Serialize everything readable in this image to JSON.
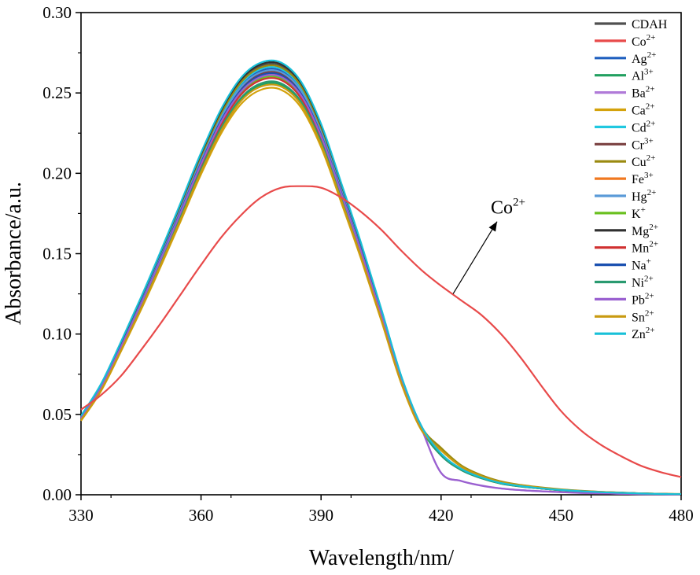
{
  "chart_data": {
    "type": "line",
    "title": "",
    "xlabel": "Wavelength/nm/",
    "ylabel": "Absorbance/a.u.",
    "xlim": [
      330,
      480
    ],
    "ylim": [
      0,
      0.3
    ],
    "xticks": [
      "330",
      "360",
      "390",
      "420",
      "450",
      "480"
    ],
    "yticks": [
      "0.00",
      "0.05",
      "0.10",
      "0.15",
      "0.20",
      "0.25",
      "0.30"
    ],
    "grid": false,
    "legend_position": "top-right",
    "x": [
      330,
      335,
      340,
      345,
      350,
      355,
      360,
      365,
      370,
      375,
      380,
      385,
      390,
      395,
      400,
      405,
      410,
      415,
      420,
      425,
      430,
      435,
      440,
      445,
      450,
      455,
      460,
      465,
      470,
      475,
      480
    ],
    "series": [
      {
        "name": "CDAH",
        "base": "CDAH",
        "sup": "",
        "color": "#505050",
        "peak": 0.268,
        "tail": 0.0015
      },
      {
        "name": "Co2+",
        "base": "Co",
        "sup": "2+",
        "color": "#e84a4a",
        "values": [
          0.053,
          0.062,
          0.074,
          0.09,
          0.107,
          0.125,
          0.143,
          0.16,
          0.174,
          0.185,
          0.191,
          0.192,
          0.191,
          0.185,
          0.176,
          0.165,
          0.152,
          0.14,
          0.13,
          0.121,
          0.112,
          0.1,
          0.085,
          0.068,
          0.052,
          0.04,
          0.031,
          0.024,
          0.018,
          0.014,
          0.011
        ]
      },
      {
        "name": "Ag2+",
        "base": "Ag",
        "sup": "2+",
        "color": "#1f5fbf",
        "peak": 0.265,
        "tail": 0.0015
      },
      {
        "name": "Al3+",
        "base": "Al",
        "sup": "3+",
        "color": "#22a060",
        "peak": 0.256,
        "tail": 0.0018
      },
      {
        "name": "Ba2+",
        "base": "Ba",
        "sup": "2+",
        "color": "#b07ad8",
        "peak": 0.262,
        "tail": 0.0005
      },
      {
        "name": "Ca2+",
        "base": "Ca",
        "sup": "2+",
        "color": "#d4a20c",
        "peak": 0.253,
        "tail": 0.0018
      },
      {
        "name": "Cd2+",
        "base": "Cd",
        "sup": "2+",
        "color": "#20c8e0",
        "peak": 0.266,
        "tail": 0.0015
      },
      {
        "name": "Cr3+",
        "base": "Cr",
        "sup": "3+",
        "color": "#7a4040",
        "peak": 0.263,
        "tail": 0.0015
      },
      {
        "name": "Cu2+",
        "base": "Cu",
        "sup": "2+",
        "color": "#9a8a10",
        "peak": 0.267,
        "tail": 0.002
      },
      {
        "name": "Fe3+",
        "base": "Fe",
        "sup": "3+",
        "color": "#f07820",
        "peak": 0.261,
        "tail": 0.0015
      },
      {
        "name": "Hg2+",
        "base": "Hg",
        "sup": "2+",
        "color": "#5a9ad8",
        "peak": 0.264,
        "tail": 0.0015
      },
      {
        "name": "K+",
        "base": "K",
        "sup": "+",
        "color": "#6ac020",
        "peak": 0.26,
        "tail": 0.0015
      },
      {
        "name": "Mg2+",
        "base": "Mg",
        "sup": "2+",
        "color": "#303030",
        "peak": 0.269,
        "tail": 0.0015
      },
      {
        "name": "Mn2+",
        "base": "Mn",
        "sup": "2+",
        "color": "#d03030",
        "peak": 0.259,
        "tail": 0.0015
      },
      {
        "name": "Na+",
        "base": "Na",
        "sup": "+",
        "color": "#1a50b0",
        "peak": 0.262,
        "tail": 0.0015
      },
      {
        "name": "Ni2+",
        "base": "Ni",
        "sup": "2+",
        "color": "#2a9a70",
        "peak": 0.257,
        "tail": 0.0015
      },
      {
        "name": "Pb2+",
        "base": "Pb",
        "sup": "2+",
        "color": "#9a60d0",
        "peak": 0.261,
        "tail": 0.0005
      },
      {
        "name": "Sn2+",
        "base": "Sn",
        "sup": "2+",
        "color": "#c89a10",
        "peak": 0.255,
        "tail": 0.002
      },
      {
        "name": "Zn2+",
        "base": "Zn",
        "sup": "2+",
        "color": "#18c0d8",
        "peak": 0.27,
        "tail": 0.0015
      }
    ],
    "annotation": {
      "text": "Co",
      "sup": "2+",
      "arrow_from": [
        423,
        0.125
      ],
      "arrow_to": [
        434,
        0.17
      ]
    }
  }
}
